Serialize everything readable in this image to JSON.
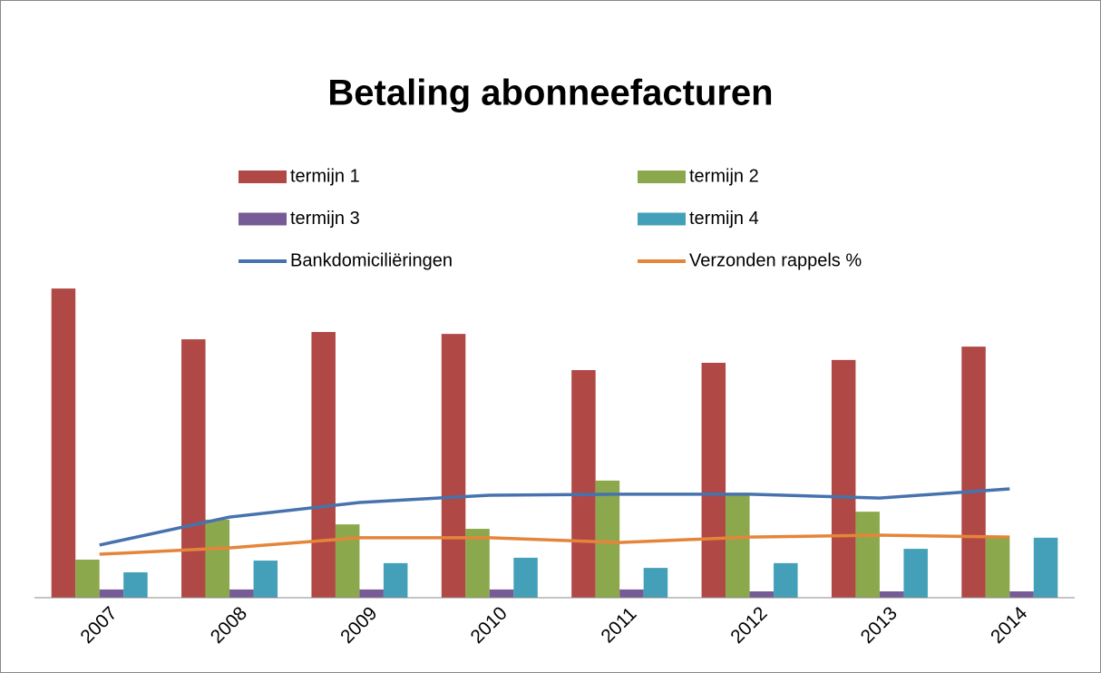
{
  "chart_data": {
    "type": "bar",
    "title": "Betaling abonneefacturen",
    "categories": [
      "2007",
      "2008",
      "2009",
      "2010",
      "2011",
      "2012",
      "2013",
      "2014"
    ],
    "series": [
      {
        "name": "termijn 1",
        "type": "bar",
        "color": "#b04845",
        "values": [
          97.4,
          81.4,
          83.7,
          83.1,
          71.7,
          74,
          74.9,
          79.1
        ]
      },
      {
        "name": "termijn 2",
        "type": "bar",
        "color": "#8ca84c",
        "values": [
          12,
          24.6,
          23.1,
          21.7,
          36.9,
          32.6,
          27.1,
          19.1
        ]
      },
      {
        "name": "termijn 3",
        "type": "bar",
        "color": "#775b96",
        "values": [
          2.6,
          2.6,
          2.6,
          2.6,
          2.6,
          2,
          2,
          2
        ]
      },
      {
        "name": "termijn 4",
        "type": "bar",
        "color": "#44a0b8",
        "values": [
          8,
          11.7,
          10.9,
          12.6,
          9.4,
          10.9,
          15.4,
          18.9
        ]
      },
      {
        "name": "Bankdomiciliëringen",
        "type": "line",
        "color": "#4673ae",
        "values": [
          16.6,
          25.4,
          30,
          32.3,
          32.6,
          32.6,
          31.4,
          34.3
        ]
      },
      {
        "name": "Verzonden rappels %",
        "type": "line",
        "color": "#e5853a",
        "values": [
          13.7,
          15.7,
          18.9,
          18.9,
          17.4,
          19.1,
          19.7,
          19.1
        ]
      }
    ],
    "ylim": [
      0,
      100
    ]
  }
}
